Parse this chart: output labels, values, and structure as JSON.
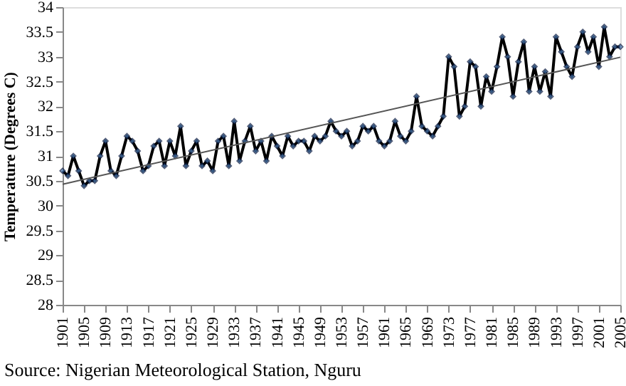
{
  "chart_data": {
    "type": "line",
    "ylabel": "Temperature (Degrees C)",
    "annotations": [
      "Source: Nigerian Meteorological Station, Nguru"
    ],
    "xlim": [
      1901,
      2005
    ],
    "xticks": [
      1901,
      1905,
      1909,
      1913,
      1917,
      1921,
      1925,
      1929,
      1933,
      1937,
      1941,
      1945,
      1949,
      1953,
      1957,
      1961,
      1965,
      1969,
      1973,
      1977,
      1981,
      1985,
      1989,
      1993,
      1997,
      2001,
      2005
    ],
    "ylim": [
      28,
      34
    ],
    "yticks": [
      28,
      28.5,
      29,
      29.5,
      30,
      30.5,
      31,
      31.5,
      32,
      32.5,
      33,
      33.5,
      34
    ],
    "grid": false,
    "series": [
      {
        "color": "#000000",
        "marker": "diamond",
        "x": [
          1901,
          1902,
          1903,
          1904,
          1905,
          1906,
          1907,
          1908,
          1909,
          1910,
          1911,
          1912,
          1913,
          1914,
          1915,
          1916,
          1917,
          1918,
          1919,
          1920,
          1921,
          1922,
          1923,
          1924,
          1925,
          1926,
          1927,
          1928,
          1929,
          1930,
          1931,
          1932,
          1933,
          1934,
          1935,
          1936,
          1937,
          1938,
          1939,
          1940,
          1941,
          1942,
          1943,
          1944,
          1945,
          1946,
          1947,
          1948,
          1949,
          1950,
          1951,
          1952,
          1953,
          1954,
          1955,
          1956,
          1957,
          1958,
          1959,
          1960,
          1961,
          1962,
          1963,
          1964,
          1965,
          1966,
          1967,
          1968,
          1969,
          1970,
          1971,
          1972,
          1973,
          1974,
          1975,
          1976,
          1977,
          1978,
          1979,
          1980,
          1981,
          1982,
          1983,
          1984,
          1985,
          1986,
          1987,
          1988,
          1989,
          1990,
          1991,
          1992,
          1993,
          1994,
          1995,
          1996,
          1997,
          1998,
          1999,
          2000,
          2001,
          2002,
          2003,
          2004,
          2005
        ],
        "values": [
          30.7,
          30.6,
          31.0,
          30.7,
          30.4,
          30.5,
          30.5,
          31.0,
          31.3,
          30.7,
          30.6,
          31.0,
          31.4,
          31.3,
          31.1,
          30.7,
          30.8,
          31.2,
          31.3,
          30.8,
          31.3,
          31.0,
          31.6,
          30.8,
          31.1,
          31.3,
          30.8,
          30.9,
          30.7,
          31.3,
          31.4,
          30.8,
          31.7,
          30.9,
          31.3,
          31.6,
          31.1,
          31.3,
          30.9,
          31.4,
          31.2,
          31.0,
          31.4,
          31.2,
          31.3,
          31.3,
          31.1,
          31.4,
          31.3,
          31.4,
          31.7,
          31.5,
          31.4,
          31.5,
          31.2,
          31.3,
          31.6,
          31.5,
          31.6,
          31.3,
          31.2,
          31.3,
          31.7,
          31.4,
          31.3,
          31.5,
          32.2,
          31.6,
          31.5,
          31.4,
          31.6,
          31.8,
          33.0,
          32.8,
          31.8,
          32.0,
          32.9,
          32.8,
          32.0,
          32.6,
          32.3,
          32.8,
          33.4,
          33.0,
          32.2,
          32.9,
          33.3,
          32.3,
          32.8,
          32.3,
          32.7,
          32.2,
          33.4,
          33.1,
          32.8,
          32.6,
          33.2,
          33.5,
          33.1,
          33.4,
          32.8,
          33.6,
          33.0,
          33.2,
          33.2
        ]
      },
      {
        "type": "line",
        "color": "#555555",
        "marker": "none",
        "x": [
          1901,
          2005
        ],
        "values": [
          30.43,
          32.99
        ]
      }
    ]
  }
}
